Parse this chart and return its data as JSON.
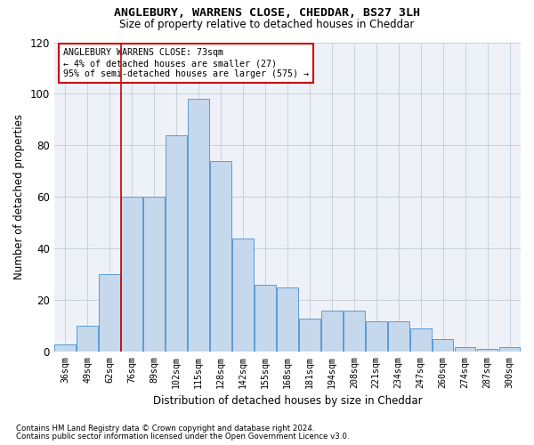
{
  "title": "ANGLEBURY, WARRENS CLOSE, CHEDDAR, BS27 3LH",
  "subtitle": "Size of property relative to detached houses in Cheddar",
  "xlabel": "Distribution of detached houses by size in Cheddar",
  "ylabel": "Number of detached properties",
  "categories": [
    "36sqm",
    "49sqm",
    "62sqm",
    "76sqm",
    "89sqm",
    "102sqm",
    "115sqm",
    "128sqm",
    "142sqm",
    "155sqm",
    "168sqm",
    "181sqm",
    "194sqm",
    "208sqm",
    "221sqm",
    "234sqm",
    "247sqm",
    "260sqm",
    "274sqm",
    "287sqm",
    "300sqm"
  ],
  "values": [
    3,
    10,
    30,
    60,
    60,
    84,
    98,
    74,
    44,
    26,
    25,
    13,
    16,
    16,
    12,
    12,
    9,
    5,
    2,
    1,
    2
  ],
  "bar_color": "#c5d8ec",
  "bar_edge_color": "#5b9bd5",
  "annotation_line1": "ANGLEBURY WARRENS CLOSE: 73sqm",
  "annotation_line2": "← 4% of detached houses are smaller (27)",
  "annotation_line3": "95% of semi-detached houses are larger (575) →",
  "annotation_box_color": "#ffffff",
  "annotation_box_edge_color": "#cc0000",
  "vline_color": "#cc0000",
  "ylim": [
    0,
    120
  ],
  "yticks": [
    0,
    20,
    40,
    60,
    80,
    100,
    120
  ],
  "grid_color": "#c8d0dc",
  "bg_color": "#eef2f8",
  "title_fontsize": 9.5,
  "subtitle_fontsize": 8.5,
  "footer1": "Contains HM Land Registry data © Crown copyright and database right 2024.",
  "footer2": "Contains public sector information licensed under the Open Government Licence v3.0."
}
